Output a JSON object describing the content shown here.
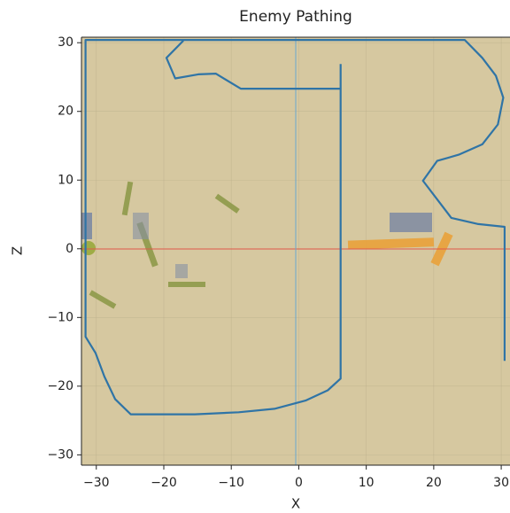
{
  "chart_data": {
    "type": "line",
    "title": "Enemy Pathing",
    "x_label": "X",
    "y_label": "Z",
    "x": [
      30.5,
      30.5,
      26.6,
      22.6,
      18.4,
      20.5,
      23.7,
      27.2,
      29.5,
      30.3,
      29.2,
      27.2,
      24.6,
      -31.6,
      -31.6,
      -30.1,
      -28.8,
      -27.2,
      -24.9,
      -15.4,
      -8.9,
      -3.6,
      1.0,
      4.3,
      6.2,
      6.2,
      null,
      6.2,
      -8.6,
      -12.3,
      -14.9,
      -18.3,
      -19.6,
      -17.1
    ],
    "series": [
      {
        "color": "#2f74a6",
        "values": [
          -16.3,
          3.2,
          3.6,
          4.5,
          9.9,
          12.8,
          13.7,
          15.2,
          18.1,
          22.0,
          25.2,
          27.8,
          30.4,
          30.4,
          -12.8,
          -15.2,
          -18.6,
          -21.9,
          -24.1,
          -24.1,
          -23.8,
          -23.3,
          -22.1,
          -20.6,
          -18.9,
          26.9,
          null,
          23.3,
          23.3,
          25.5,
          25.4,
          24.8,
          27.8,
          30.3
        ]
      }
    ],
    "xlim": [
      -32.2,
      31.3
    ],
    "ylim": [
      -31.5,
      30.8
    ],
    "xticks": [
      {
        "value": -30,
        "label": "−30"
      },
      {
        "value": -20,
        "label": "−20"
      },
      {
        "value": -10,
        "label": "−10"
      },
      0,
      10,
      20,
      30
    ],
    "yticks": [
      {
        "value": -30,
        "label": "−30"
      },
      {
        "value": -20,
        "label": "−20"
      },
      {
        "value": -10,
        "label": "−10"
      },
      0,
      10,
      20,
      30
    ],
    "grid": true
  }
}
